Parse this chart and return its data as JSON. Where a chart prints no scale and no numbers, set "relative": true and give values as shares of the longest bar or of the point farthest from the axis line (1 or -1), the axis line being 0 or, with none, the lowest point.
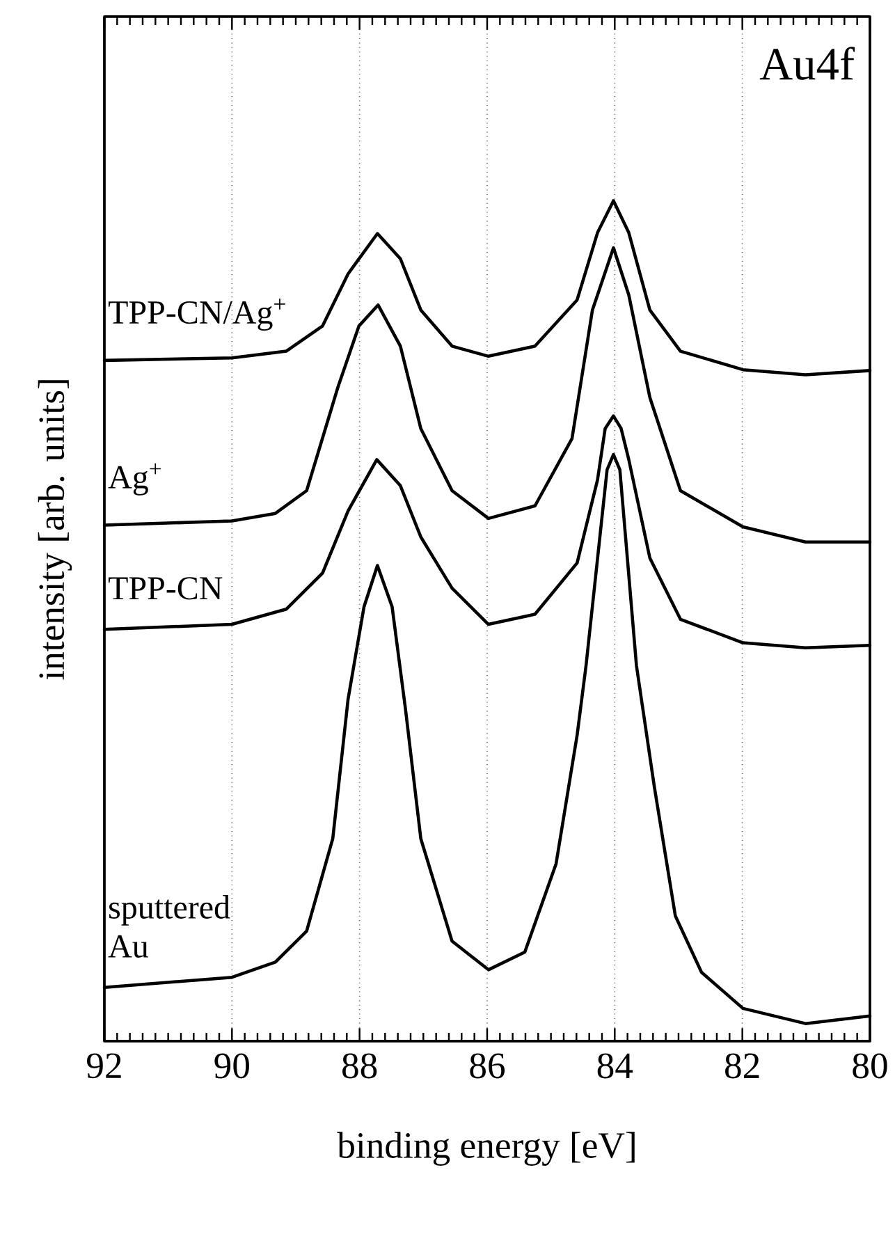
{
  "chart_data": {
    "type": "line",
    "xlabel": "binding energy [eV]",
    "ylabel": "intensity [arb. units]",
    "annotations": [
      "Au4f"
    ],
    "xlim": [
      92,
      80
    ],
    "xticks": [
      92,
      90,
      88,
      86,
      84,
      82,
      80
    ],
    "grid": "x",
    "tick_labels": "x",
    "relative": true,
    "line_style": "solid",
    "series": [
      {
        "name": "TPP-CN/Ag$^{+}$",
        "color": "#000000",
        "x": [
          92,
          90,
          89.15,
          88.58,
          88.18,
          87.72,
          87.36,
          87.04,
          86.55,
          85.98,
          85.25,
          84.59,
          84.27,
          84.02,
          83.78,
          83.45,
          82.97,
          81.99,
          81.01,
          80.0
        ],
        "values": [
          0.81,
          0.813,
          0.821,
          0.851,
          0.913,
          0.961,
          0.931,
          0.87,
          0.827,
          0.815,
          0.827,
          0.882,
          0.962,
          1.0,
          0.962,
          0.87,
          0.821,
          0.799,
          0.793,
          0.798
        ]
      },
      {
        "name": "Ag$^{+}$",
        "color": "#000000",
        "x": [
          92,
          90,
          89.32,
          88.83,
          88.34,
          88.01,
          87.71,
          87.36,
          87.04,
          86.55,
          85.98,
          85.25,
          84.67,
          84.35,
          84.02,
          83.78,
          83.45,
          82.97,
          81.99,
          81.01,
          80.0
        ],
        "values": [
          0.614,
          0.619,
          0.628,
          0.655,
          0.778,
          0.851,
          0.876,
          0.827,
          0.729,
          0.655,
          0.622,
          0.637,
          0.717,
          0.87,
          0.944,
          0.888,
          0.766,
          0.655,
          0.612,
          0.594,
          0.594
        ]
      },
      {
        "name": "TPP-CN",
        "color": "#000000",
        "x": [
          92,
          90,
          89.15,
          88.58,
          88.18,
          87.73,
          87.36,
          87.04,
          86.55,
          85.98,
          85.25,
          84.59,
          84.27,
          84.15,
          84.02,
          83.9,
          83.78,
          83.45,
          82.97,
          81.99,
          81.01,
          80.0
        ],
        "values": [
          0.49,
          0.496,
          0.514,
          0.557,
          0.631,
          0.692,
          0.661,
          0.6,
          0.539,
          0.496,
          0.508,
          0.569,
          0.668,
          0.729,
          0.744,
          0.729,
          0.692,
          0.575,
          0.502,
          0.474,
          0.468,
          0.471
        ]
      },
      {
        "name": "sputtered Au",
        "color": "#000000",
        "x": [
          92,
          90,
          89.32,
          88.83,
          88.42,
          88.18,
          87.93,
          87.72,
          87.49,
          87.28,
          87.04,
          86.55,
          85.98,
          85.41,
          84.92,
          84.59,
          84.45,
          84.12,
          84.02,
          83.92,
          83.66,
          83.38,
          83.05,
          82.64,
          81.99,
          81.01,
          80.0
        ],
        "values": [
          0.064,
          0.076,
          0.094,
          0.131,
          0.241,
          0.407,
          0.517,
          0.566,
          0.517,
          0.395,
          0.241,
          0.119,
          0.085,
          0.106,
          0.211,
          0.364,
          0.447,
          0.68,
          0.698,
          0.68,
          0.447,
          0.303,
          0.149,
          0.082,
          0.039,
          0.021,
          0.03
        ]
      }
    ]
  }
}
